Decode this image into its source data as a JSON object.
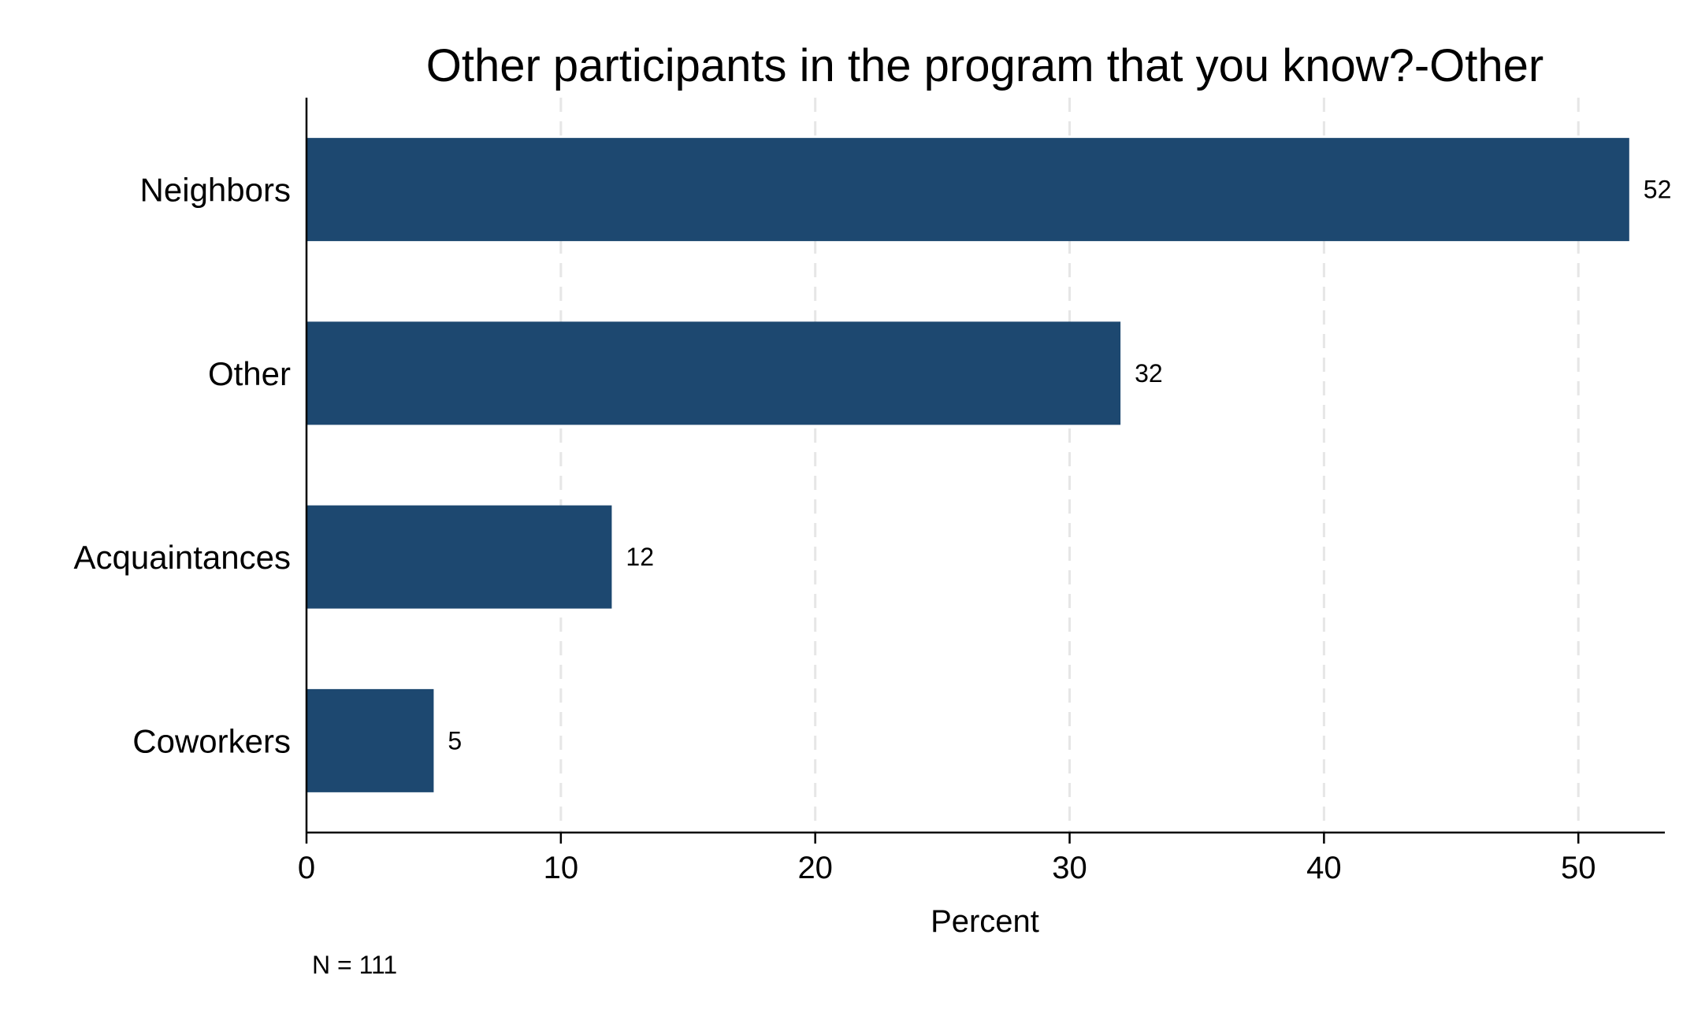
{
  "chart_data": {
    "type": "bar",
    "orientation": "horizontal",
    "title": "Other participants in the program that you know?-Other",
    "xlabel": "Percent",
    "ylabel": "",
    "categories": [
      "Neighbors",
      "Other",
      "Acquaintances",
      "Coworkers"
    ],
    "values": [
      52,
      32,
      12,
      5
    ],
    "value_labels": [
      "52",
      "32",
      "12",
      "5"
    ],
    "xlim": [
      0,
      53.4
    ],
    "xticks": [
      0,
      10,
      20,
      30,
      40,
      50
    ],
    "xtick_labels": [
      "0",
      "10",
      "20",
      "30",
      "40",
      "50"
    ],
    "grid": "vertical dashed",
    "legend": "none",
    "note": "N = 111",
    "bar_color": "#1d4870",
    "grid_color": "#e6e6e6",
    "axis_color": "#000000"
  }
}
